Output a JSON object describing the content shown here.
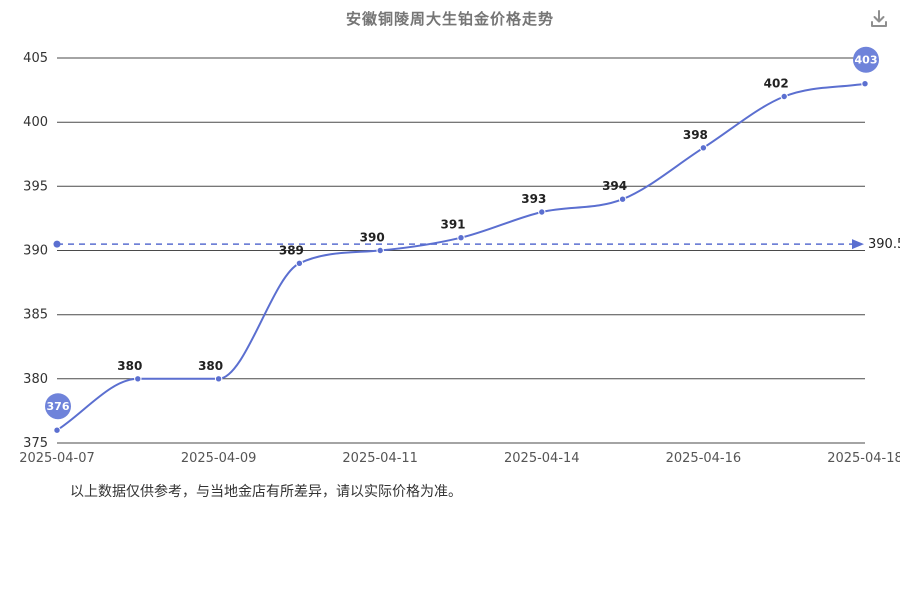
{
  "header": {
    "title": "安徽铜陵周大生铂金价格走势"
  },
  "toolbar": {
    "download_icon": "download-icon"
  },
  "chart_data": {
    "type": "line",
    "title": "安徽铜陵周大生铂金价格走势",
    "values": [
      376,
      380,
      380,
      389,
      390,
      391,
      393,
      394,
      398,
      402,
      403
    ],
    "point_labels": [
      "376",
      "380",
      "380",
      "389",
      "390",
      "391",
      "393",
      "394",
      "398",
      "402",
      "403"
    ],
    "x_tick_labels": [
      "2025-04-07",
      "2025-04-09",
      "2025-04-11",
      "2025-04-14",
      "2025-04-16",
      "2025-04-18"
    ],
    "x_tick_indices": [
      0,
      2,
      4,
      6,
      8,
      10
    ],
    "y_ticks": [
      375,
      380,
      385,
      390,
      395,
      400,
      405
    ],
    "ylim": [
      375,
      405
    ],
    "grid": "horizontal",
    "legend_position": "none",
    "average_line": {
      "value": 390.5,
      "label": "390.5",
      "style": "dashed-arrow"
    },
    "start_badge": "376",
    "end_badge": "403",
    "colors": {
      "line": "#5b6fd0",
      "marker": "#5b6fd0",
      "badge": "#6f83da",
      "grid": "#4a4a4a",
      "axis_text": "#333333",
      "x_text": "#555555",
      "label_text": "#222222"
    }
  },
  "footnote": "以上数据仅供参考，与当地金店有所差异，请以实际价格为准。"
}
